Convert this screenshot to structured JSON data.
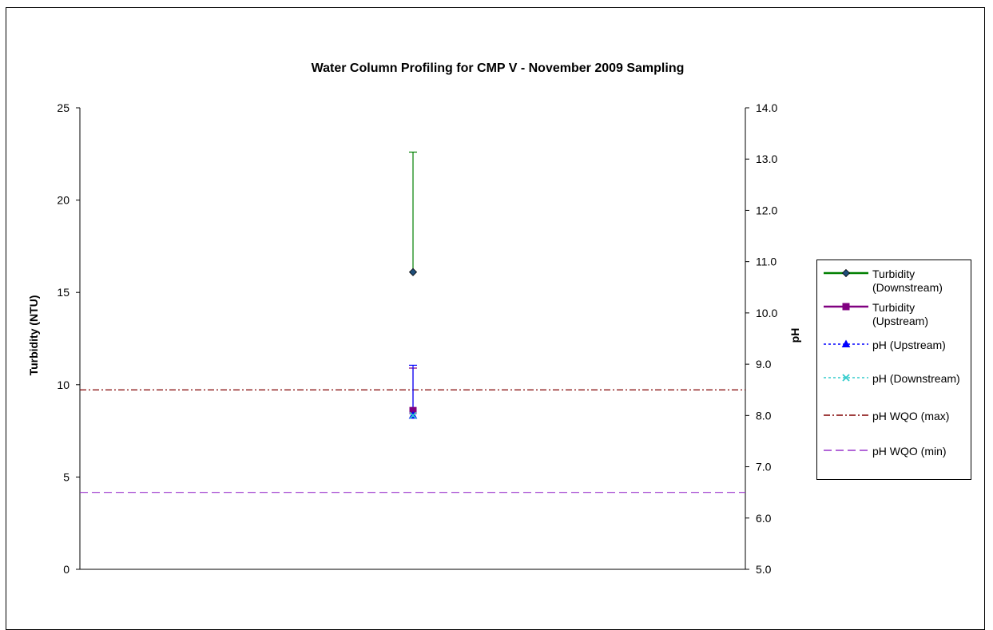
{
  "chart_data": {
    "type": "line",
    "title": "Water Column Profiling for CMP V - November 2009 Sampling",
    "ylabel": "Turbidity (NTU)",
    "y2label": "pH",
    "ylim": [
      0,
      25
    ],
    "y2lim": [
      5.0,
      14.0
    ],
    "yticks": [
      "0",
      "5",
      "10",
      "15",
      "20",
      "25"
    ],
    "y2ticks": [
      "5.0",
      "6.0",
      "7.0",
      "8.0",
      "9.0",
      "10.0",
      "11.0",
      "12.0",
      "13.0",
      "14.0"
    ],
    "grid": false,
    "legend_position": "right",
    "series": [
      {
        "name": "Turbidity\n(Downstream)",
        "axis": "left",
        "value": 16.1,
        "error_low": 16.1,
        "error_high": 22.6,
        "color": "#008000",
        "marker": "diamond",
        "line": "solid"
      },
      {
        "name": "Turbidity\n(Upstream)",
        "axis": "left",
        "value": 8.6,
        "error_low": 8.6,
        "error_high": 10.9,
        "color": "#800080",
        "marker": "square",
        "line": "solid"
      },
      {
        "name": "pH (Upstream)",
        "axis": "right",
        "value": 8.0,
        "error_low": 8.0,
        "error_high": 8.98,
        "color": "#0000ff",
        "marker": "triangle",
        "line": "dotted"
      },
      {
        "name": "pH (Downstream)",
        "axis": "right",
        "value": 8.0,
        "color": "#33cccc",
        "marker": "x",
        "line": "dotted"
      },
      {
        "name": "pH WQO (max)",
        "axis": "right",
        "value": 8.5,
        "color": "#800000",
        "marker": "none",
        "line": "dashdot"
      },
      {
        "name": "pH WQO (min)",
        "axis": "right",
        "value": 6.5,
        "color": "#9933cc",
        "marker": "none",
        "line": "dashed"
      }
    ]
  }
}
